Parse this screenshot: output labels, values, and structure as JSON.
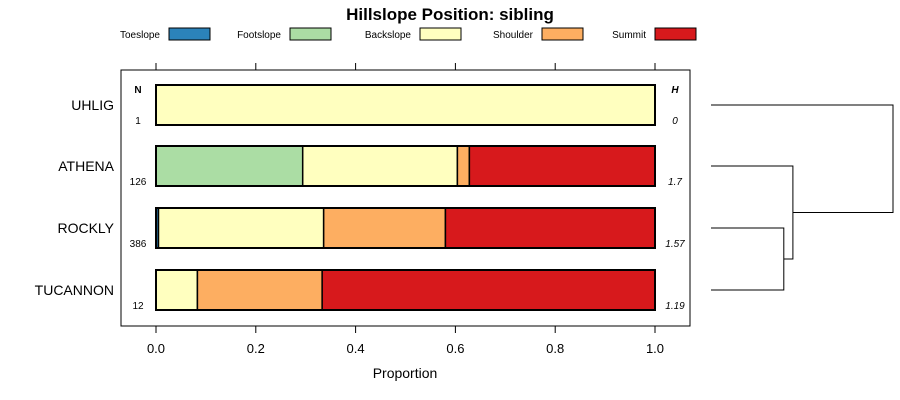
{
  "chart_data": {
    "type": "bar",
    "stacked": true,
    "orientation": "horizontal",
    "title": "Hillslope Position: sibling",
    "xlabel": "Proportion",
    "ylabel": "",
    "xlim": [
      0,
      1
    ],
    "x_ticks": [
      "0.0",
      "0.2",
      "0.4",
      "0.6",
      "0.8",
      "1.0"
    ],
    "legend": {
      "position": "top",
      "items": [
        {
          "name": "Toeslope",
          "color": "#2b83ba"
        },
        {
          "name": "Footslope",
          "color": "#abdda4"
        },
        {
          "name": "Backslope",
          "color": "#ffffbf"
        },
        {
          "name": "Shoulder",
          "color": "#fdae61"
        },
        {
          "name": "Summit",
          "color": "#d7191c"
        }
      ]
    },
    "categories": [
      "UHLIG",
      "ATHENA",
      "ROCKLY",
      "TUCANNON"
    ],
    "series": [
      {
        "name": "Toeslope",
        "values": [
          0,
          0,
          0.005,
          0
        ]
      },
      {
        "name": "Footslope",
        "values": [
          0,
          0.294,
          0,
          0
        ]
      },
      {
        "name": "Backslope",
        "values": [
          1,
          0.31,
          0.331,
          0.083
        ]
      },
      {
        "name": "Shoulder",
        "values": [
          0,
          0.024,
          0.244,
          0.25
        ]
      },
      {
        "name": "Summit",
        "values": [
          0,
          0.372,
          0.42,
          0.667
        ]
      }
    ],
    "n_header": "N",
    "n_values": [
      "1",
      "126",
      "386",
      "12"
    ],
    "h_header": "H",
    "h_values": [
      "0",
      "1.7",
      "1.57",
      "1.19"
    ],
    "dendrogram": {
      "leaves": [
        "UHLIG",
        "ATHENA",
        "ROCKLY",
        "TUCANNON"
      ],
      "merges": [
        {
          "left": "ROCKLY",
          "right": "TUCANNON",
          "height": 0.4
        },
        {
          "left": "ATHENA",
          "right": "ROCKLY+TUCANNON",
          "height": 0.45
        },
        {
          "left": "UHLIG",
          "right": "ATHENA+ROCKLY+TUCANNON",
          "height": 1.0
        }
      ]
    }
  }
}
